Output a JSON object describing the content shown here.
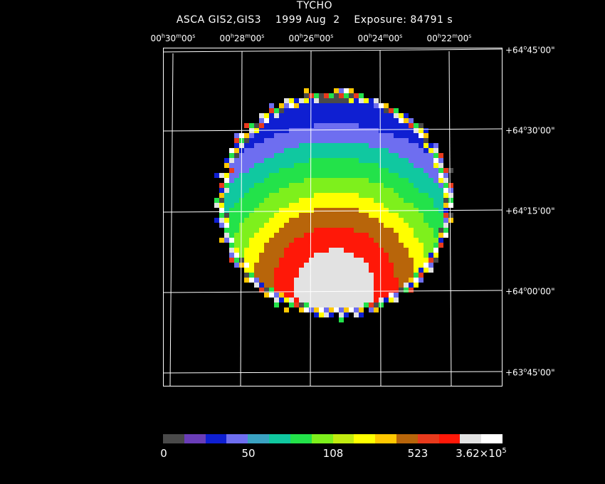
{
  "header": {
    "title": "TYCHO",
    "subtitle": "ASCA GIS2,GIS3    1999 Aug  2    Exposure: 84791 s"
  },
  "axes": {
    "ra_labels": [
      {
        "h": "00",
        "m": "30",
        "s": "00"
      },
      {
        "h": "00",
        "m": "28",
        "s": "00"
      },
      {
        "h": "00",
        "m": "26",
        "s": "00"
      },
      {
        "h": "00",
        "m": "24",
        "s": "00"
      },
      {
        "h": "00",
        "m": "22",
        "s": "00"
      }
    ],
    "dec_labels": [
      {
        "d": "+64",
        "m": "45",
        "s": "00"
      },
      {
        "d": "+64",
        "m": "30",
        "s": "00"
      },
      {
        "d": "+64",
        "m": "15",
        "s": "00"
      },
      {
        "d": "+64",
        "m": "00",
        "s": "00"
      },
      {
        "d": "+63",
        "m": "45",
        "s": "00"
      }
    ]
  },
  "colorbar": {
    "colors": [
      "#4a4a4a",
      "#6a3db8",
      "#0f1fd2",
      "#6e6ef0",
      "#3aa2c2",
      "#10c8a0",
      "#23e24a",
      "#7ef01c",
      "#c2ec10",
      "#ffff00",
      "#ffc800",
      "#b8650a",
      "#e83a1c",
      "#ff1808",
      "#e2e2e2",
      "#ffffff"
    ],
    "ticks": [
      {
        "label": "0"
      },
      {
        "label": "50"
      },
      {
        "label": "108"
      },
      {
        "label": "523"
      },
      {
        "label": "3.62×10",
        "sup": "5"
      }
    ]
  }
}
